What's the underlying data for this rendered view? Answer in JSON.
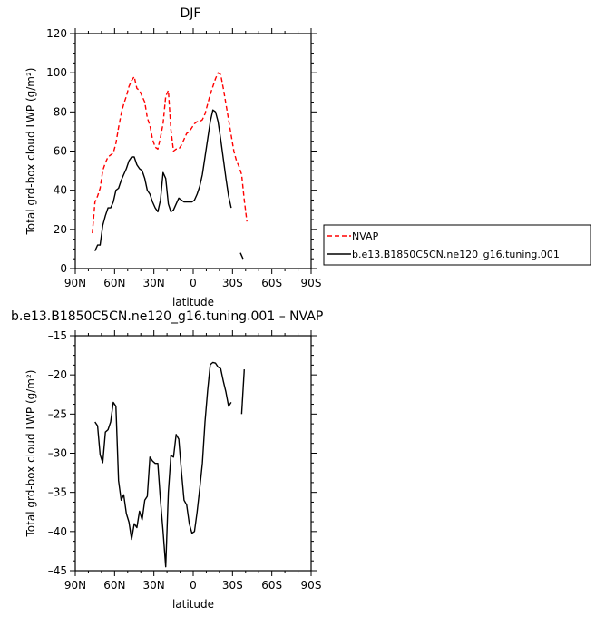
{
  "chart_data": [
    {
      "type": "line",
      "title": "DJF",
      "xlabel": "latitude",
      "ylabel": "Total grd-box cloud LWP (g/m²)",
      "xlim": [
        -90,
        90
      ],
      "ylim": [
        0,
        120
      ],
      "xticks": [
        -90,
        -60,
        -30,
        0,
        30,
        60,
        90
      ],
      "xtick_labels": [
        "90N",
        "60N",
        "30N",
        "0",
        "30S",
        "60S",
        "90S"
      ],
      "yticks": [
        0,
        20,
        40,
        60,
        80,
        100,
        120
      ],
      "ytick_labels": [
        "0",
        "20",
        "40",
        "60",
        "80",
        "100",
        "120"
      ],
      "legend_position": "right",
      "series": [
        {
          "name": "NVAP",
          "color": "#ff0000",
          "dash": "dashed",
          "segments": [
            [
              [
                -77,
                18
              ],
              [
                -75,
                34
              ],
              [
                -73,
                37
              ],
              [
                -71,
                41
              ],
              [
                -69,
                50
              ],
              [
                -67,
                54
              ],
              [
                -65,
                57
              ],
              [
                -63,
                58
              ],
              [
                -61,
                59
              ],
              [
                -59,
                64
              ],
              [
                -57,
                72
              ],
              [
                -55,
                79
              ],
              [
                -53,
                84
              ],
              [
                -51,
                88
              ],
              [
                -49,
                93
              ],
              [
                -47,
                96
              ],
              [
                -45,
                98
              ],
              [
                -43,
                92
              ],
              [
                -41,
                91
              ],
              [
                -39,
                88
              ],
              [
                -37,
                85
              ],
              [
                -35,
                77
              ],
              [
                -33,
                73
              ],
              [
                -31,
                66
              ],
              [
                -29,
                62
              ],
              [
                -27,
                61
              ],
              [
                -25,
                67
              ],
              [
                -23,
                74
              ],
              [
                -21,
                88
              ],
              [
                -19,
                91
              ],
              [
                -17,
                71
              ],
              [
                -15,
                60
              ],
              [
                -13,
                61
              ],
              [
                -11,
                61
              ],
              [
                -9,
                63
              ],
              [
                -7,
                66
              ],
              [
                -5,
                69
              ],
              [
                -3,
                70
              ],
              [
                -1,
                72
              ],
              [
                1,
                74
              ],
              [
                3,
                75
              ],
              [
                5,
                75
              ],
              [
                7,
                76
              ],
              [
                9,
                79
              ],
              [
                11,
                84
              ],
              [
                13,
                89
              ],
              [
                15,
                93
              ],
              [
                17,
                97
              ],
              [
                19,
                100
              ],
              [
                21,
                99
              ],
              [
                23,
                92
              ],
              [
                25,
                84
              ],
              [
                27,
                76
              ],
              [
                29,
                68
              ],
              [
                31,
                60
              ],
              [
                33,
                55
              ],
              [
                35,
                52
              ],
              [
                37,
                48
              ],
              [
                39,
                35
              ],
              [
                41,
                24
              ]
            ]
          ]
        },
        {
          "name": "b.e13.B1850C5CN.ne120_g16.tuning.001",
          "color": "#000000",
          "dash": "solid",
          "segments": [
            [
              [
                -75,
                9
              ],
              [
                -73,
                12
              ],
              [
                -71,
                12
              ],
              [
                -69,
                22
              ],
              [
                -67,
                27
              ],
              [
                -65,
                31
              ],
              [
                -63,
                31
              ],
              [
                -61,
                34
              ],
              [
                -59,
                40
              ],
              [
                -57,
                41
              ],
              [
                -55,
                45
              ],
              [
                -53,
                48
              ],
              [
                -51,
                51
              ],
              [
                -49,
                55
              ],
              [
                -47,
                57
              ],
              [
                -45,
                57
              ],
              [
                -43,
                53
              ],
              [
                -41,
                51
              ],
              [
                -39,
                50
              ],
              [
                -37,
                46
              ],
              [
                -35,
                40
              ],
              [
                -33,
                38
              ],
              [
                -31,
                34
              ],
              [
                -29,
                31
              ],
              [
                -27,
                29
              ],
              [
                -25,
                35
              ],
              [
                -23,
                49
              ],
              [
                -21,
                46
              ],
              [
                -19,
                33
              ],
              [
                -17,
                29
              ],
              [
                -15,
                30
              ],
              [
                -13,
                33
              ],
              [
                -11,
                36
              ],
              [
                -9,
                35
              ],
              [
                -7,
                34
              ],
              [
                -5,
                34
              ],
              [
                -3,
                34
              ],
              [
                -1,
                34
              ],
              [
                1,
                35
              ],
              [
                3,
                38
              ],
              [
                5,
                42
              ],
              [
                7,
                48
              ],
              [
                9,
                57
              ],
              [
                11,
                66
              ],
              [
                13,
                75
              ],
              [
                15,
                81
              ],
              [
                17,
                80
              ],
              [
                19,
                75
              ],
              [
                21,
                66
              ],
              [
                23,
                56
              ],
              [
                25,
                46
              ],
              [
                27,
                37
              ],
              [
                29,
                31
              ]
            ],
            [
              [
                36,
                8
              ],
              [
                38,
                5
              ]
            ]
          ]
        }
      ]
    },
    {
      "type": "line",
      "title": "b.e13.B1850C5CN.ne120_g16.tuning.001 – NVAP",
      "xlabel": "latitude",
      "ylabel": "Total grd-box cloud LWP (g/m²)",
      "xlim": [
        -90,
        90
      ],
      "ylim": [
        -45,
        -15
      ],
      "xticks": [
        -90,
        -60,
        -30,
        0,
        30,
        60,
        90
      ],
      "xtick_labels": [
        "90N",
        "60N",
        "30N",
        "0",
        "30S",
        "60S",
        "90S"
      ],
      "yticks": [
        -45,
        -40,
        -35,
        -30,
        -25,
        -20,
        -15
      ],
      "ytick_labels": [
        "–45",
        "–40",
        "–35",
        "–30",
        "–25",
        "–20",
        "–15"
      ],
      "series": [
        {
          "color": "#000000",
          "dash": "solid",
          "segments": [
            [
              [
                -75,
                -26
              ],
              [
                -73,
                -26.5
              ],
              [
                -71,
                -30.2
              ],
              [
                -69,
                -31.2
              ],
              [
                -67,
                -27.3
              ],
              [
                -65,
                -27
              ],
              [
                -63,
                -26
              ],
              [
                -61,
                -23.5
              ],
              [
                -59,
                -24
              ],
              [
                -57,
                -33.5
              ],
              [
                -55,
                -36
              ],
              [
                -53,
                -35.3
              ],
              [
                -51,
                -37.7
              ],
              [
                -49,
                -38.8
              ],
              [
                -47,
                -41
              ],
              [
                -45,
                -39
              ],
              [
                -43,
                -39.5
              ],
              [
                -41,
                -37.4
              ],
              [
                -39,
                -38.5
              ],
              [
                -37,
                -36
              ],
              [
                -35,
                -35.5
              ],
              [
                -33,
                -30.5
              ],
              [
                -31,
                -31
              ],
              [
                -29,
                -31.3
              ],
              [
                -27,
                -31.3
              ],
              [
                -25,
                -36
              ],
              [
                -23,
                -40
              ],
              [
                -21,
                -44.5
              ],
              [
                -19,
                -35
              ],
              [
                -17,
                -30.3
              ],
              [
                -15,
                -30.5
              ],
              [
                -13,
                -27.6
              ],
              [
                -11,
                -28.2
              ],
              [
                -9,
                -32.3
              ],
              [
                -7,
                -36
              ],
              [
                -5,
                -36.6
              ],
              [
                -3,
                -39
              ],
              [
                -1,
                -40.2
              ],
              [
                1,
                -40
              ],
              [
                3,
                -37.5
              ],
              [
                5,
                -34.5
              ],
              [
                7,
                -31.3
              ],
              [
                9,
                -26
              ],
              [
                11,
                -22
              ],
              [
                13,
                -18.7
              ],
              [
                15,
                -18.4
              ],
              [
                17,
                -18.5
              ],
              [
                19,
                -19
              ],
              [
                21,
                -19.2
              ],
              [
                23,
                -20.8
              ],
              [
                25,
                -22.2
              ],
              [
                27,
                -24
              ],
              [
                29,
                -23.5
              ]
            ],
            [
              [
                37,
                -25
              ],
              [
                39,
                -19.3
              ]
            ]
          ]
        }
      ]
    }
  ]
}
